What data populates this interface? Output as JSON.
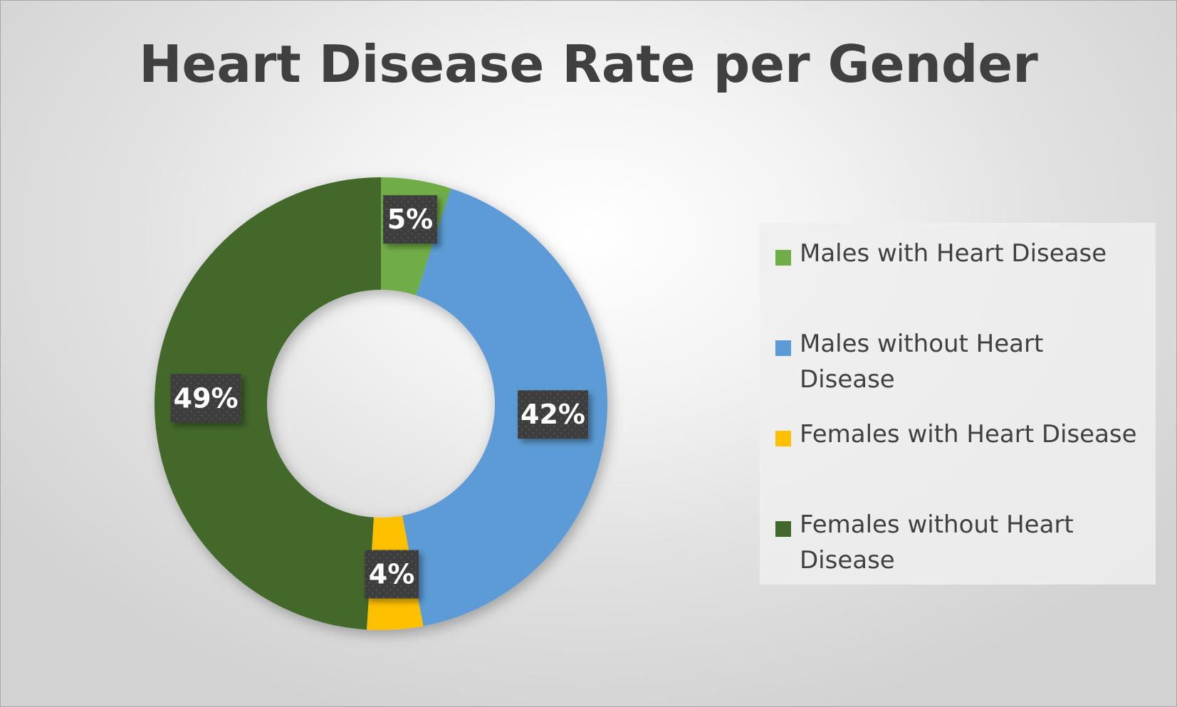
{
  "chart_data": {
    "type": "pie",
    "subtype": "donut",
    "title": "Heart Disease Rate per Gender",
    "legend_position": "right",
    "slices": [
      {
        "name": "Males with Heart Disease",
        "value": 5,
        "label": "5%",
        "color": "#70ad47"
      },
      {
        "name": "Males without Heart Disease",
        "value": 42,
        "label": "42%",
        "color": "#5b9bd5"
      },
      {
        "name": "Females with Heart Disease",
        "value": 4,
        "label": "4%",
        "color": "#ffc000"
      },
      {
        "name": "Females without Heart Disease",
        "value": 49,
        "label": "49%",
        "color": "#43682b"
      }
    ]
  }
}
